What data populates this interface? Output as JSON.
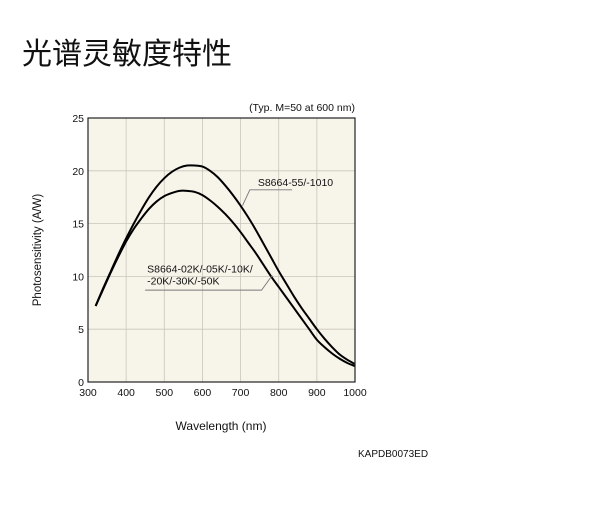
{
  "page": {
    "title": "光谱灵敏度特性",
    "figure_id": "KAPDB0073ED"
  },
  "chart_data": {
    "type": "line",
    "title": "",
    "subtitle": "",
    "note": "(Typ. M=50 at 600 nm)",
    "xlabel": "Wavelength (nm)",
    "ylabel": "Photosensitivity (A/W)",
    "xlim": [
      300,
      1000
    ],
    "ylim": [
      0,
      25
    ],
    "xticks": [
      300,
      400,
      500,
      600,
      700,
      800,
      900,
      1000
    ],
    "yticks": [
      0,
      5,
      10,
      15,
      20,
      25
    ],
    "grid": true,
    "background": "#f7f4ea",
    "line_color": "#000000",
    "series": [
      {
        "name": "S8664-55/-1010",
        "x": [
          320,
          340,
          360,
          380,
          400,
          420,
          440,
          460,
          480,
          500,
          520,
          540,
          560,
          580,
          600,
          620,
          640,
          660,
          680,
          700,
          720,
          740,
          760,
          780,
          800,
          820,
          840,
          860,
          880,
          900,
          920,
          940,
          960,
          980,
          1000
        ],
        "y": [
          7.2,
          8.9,
          10.5,
          12.1,
          13.6,
          15.0,
          16.3,
          17.5,
          18.5,
          19.3,
          19.9,
          20.3,
          20.5,
          20.5,
          20.4,
          20.0,
          19.4,
          18.6,
          17.7,
          16.7,
          15.6,
          14.4,
          13.1,
          11.8,
          10.5,
          9.3,
          8.1,
          7.0,
          6.0,
          5.0,
          4.1,
          3.3,
          2.6,
          2.1,
          1.7
        ]
      },
      {
        "name": "S8664-02K/-05K/-10K/-20K/-30K/-50K",
        "x": [
          320,
          340,
          360,
          380,
          400,
          420,
          440,
          460,
          480,
          500,
          520,
          540,
          560,
          580,
          600,
          620,
          640,
          660,
          680,
          700,
          720,
          740,
          760,
          780,
          800,
          820,
          840,
          860,
          880,
          900,
          920,
          940,
          960,
          980,
          1000
        ],
        "y": [
          7.2,
          8.8,
          10.4,
          11.9,
          13.3,
          14.5,
          15.5,
          16.4,
          17.1,
          17.6,
          17.9,
          18.1,
          18.1,
          18.0,
          17.7,
          17.2,
          16.6,
          15.9,
          15.1,
          14.2,
          13.2,
          12.2,
          11.1,
          10.0,
          9.0,
          8.0,
          7.0,
          6.0,
          5.0,
          4.0,
          3.3,
          2.7,
          2.2,
          1.8,
          1.5
        ]
      }
    ],
    "annotations": [
      {
        "series": 0,
        "lines": [
          "S8664-55/-1010"
        ]
      },
      {
        "series": 1,
        "lines": [
          "S8664-02K/-05K/-10K/",
          "-20K/-30K/-50K"
        ]
      }
    ]
  }
}
